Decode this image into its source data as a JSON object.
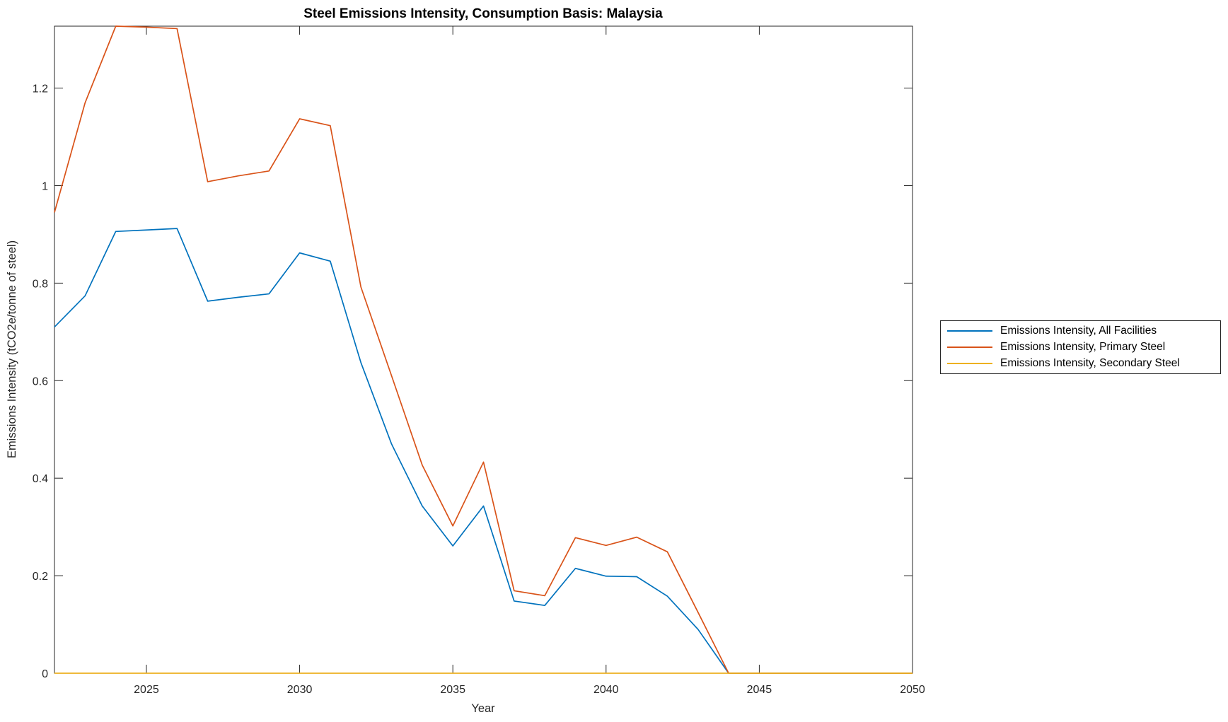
{
  "colors": {
    "axis": "#262626",
    "text": "#262626",
    "title": "#000000",
    "series_blue": "#0072BD",
    "series_orange": "#D95319",
    "series_yellow": "#EDB120"
  },
  "chart_data": {
    "type": "line",
    "title": "Steel Emissions Intensity, Consumption Basis: Malaysia",
    "xlabel": "Year",
    "ylabel": "Emissions Intensity (tCO2e/tonne of steel)",
    "xlim": [
      2022,
      2050
    ],
    "ylim": [
      0,
      1.327
    ],
    "grid": false,
    "legend_position": "outside-right",
    "xticks": [
      2025,
      2030,
      2035,
      2040,
      2045,
      2050
    ],
    "xtick_labels": [
      "2025",
      "2030",
      "2035",
      "2040",
      "2045",
      "2050"
    ],
    "yticks": [
      0,
      0.2,
      0.4,
      0.6,
      0.8,
      1,
      1.2
    ],
    "ytick_labels": [
      "0",
      "0.2",
      "0.4",
      "0.6",
      "0.8",
      "1",
      "1.2"
    ],
    "x": [
      2022,
      2023,
      2024,
      2025,
      2026,
      2027,
      2028,
      2029,
      2030,
      2031,
      2032,
      2033,
      2034,
      2035,
      2036,
      2037,
      2038,
      2039,
      2040,
      2041,
      2042,
      2043,
      2044,
      2045,
      2046,
      2047,
      2048,
      2049,
      2050
    ],
    "series": [
      {
        "name": "Emissions Intensity, All Facilities",
        "color": "#0072BD",
        "values": [
          0.71,
          0.774,
          0.906,
          0.909,
          0.912,
          0.763,
          0.771,
          0.778,
          0.862,
          0.845,
          0.637,
          0.47,
          0.343,
          0.261,
          0.343,
          0.148,
          0.139,
          0.215,
          0.199,
          0.198,
          0.158,
          0.09,
          0,
          0,
          0,
          0,
          0,
          0,
          0
        ]
      },
      {
        "name": "Emissions Intensity, Primary Steel",
        "color": "#D95319",
        "values": [
          0.945,
          1.17,
          1.327,
          1.325,
          1.322,
          1.008,
          1.02,
          1.03,
          1.137,
          1.123,
          0.792,
          0.61,
          0.427,
          0.302,
          0.433,
          0.169,
          0.159,
          0.278,
          0.262,
          0.279,
          0.249,
          0.125,
          0,
          0,
          0,
          0,
          0,
          0,
          0
        ]
      },
      {
        "name": "Emissions Intensity, Secondary Steel",
        "color": "#EDB120",
        "values": [
          0,
          0,
          0,
          0,
          0,
          0,
          0,
          0,
          0,
          0,
          0,
          0,
          0,
          0,
          0,
          0,
          0,
          0,
          0,
          0,
          0,
          0,
          0,
          0,
          0,
          0,
          0,
          0,
          0
        ]
      }
    ]
  }
}
